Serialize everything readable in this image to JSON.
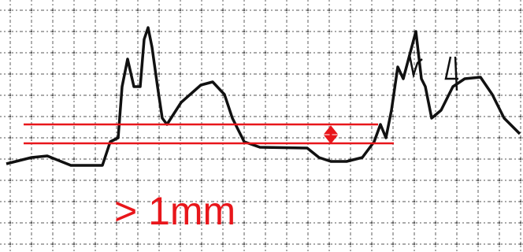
{
  "annotation": {
    "label": "> 1mm"
  }
}
